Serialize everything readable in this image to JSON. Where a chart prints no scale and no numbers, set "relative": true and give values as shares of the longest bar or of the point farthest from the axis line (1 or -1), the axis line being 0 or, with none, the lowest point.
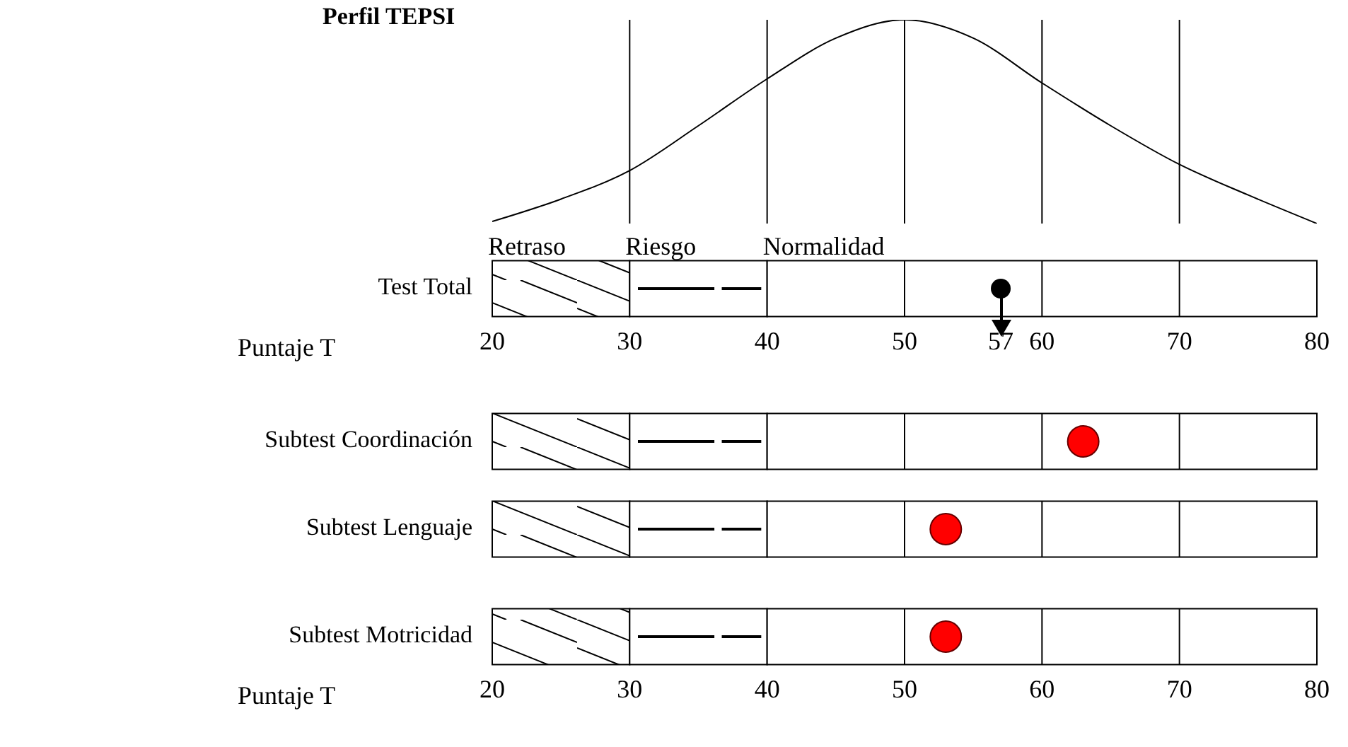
{
  "chart_data": [
    {
      "type": "line",
      "title": "Perfil TEPSI",
      "relative": true,
      "x": [
        20,
        25,
        30,
        35,
        40,
        45,
        50,
        55,
        60,
        65,
        70,
        75,
        80
      ],
      "values": [
        0.01,
        0.12,
        0.26,
        0.48,
        0.71,
        0.91,
        1,
        0.91,
        0.69,
        0.48,
        0.29,
        0.14,
        0
      ],
      "color": "#000000",
      "xlim": [
        20,
        80
      ],
      "tick_labels": false,
      "marker": "none",
      "line_style": "solid",
      "ref_lines": [
        {
          "axis": "x",
          "value": 30
        },
        {
          "axis": "x",
          "value": 40
        },
        {
          "axis": "x",
          "value": 50
        },
        {
          "axis": "x",
          "value": 60
        },
        {
          "axis": "x",
          "value": 70
        }
      ]
    },
    {
      "type": "scatter",
      "orientation": "horizontal",
      "categories": [
        "Test Total"
      ],
      "values": [
        57
      ],
      "colors": [
        "#000000"
      ],
      "xlabel": "Puntaje T",
      "xlim": [
        20,
        80
      ],
      "xticks": [
        20,
        30,
        40,
        50,
        57,
        60,
        70,
        80
      ],
      "bands": [
        {
          "axis": "x",
          "from": 20,
          "to": 30,
          "label": "Retraso"
        },
        {
          "axis": "x",
          "from": 30,
          "to": 40,
          "label": "Riesgo"
        },
        {
          "axis": "x",
          "from": 40,
          "to": 80,
          "label": "Normalidad"
        }
      ],
      "ref_lines": [
        {
          "axis": "x",
          "value": 50
        },
        {
          "axis": "x",
          "value": 60
        },
        {
          "axis": "x",
          "value": 70
        }
      ]
    },
    {
      "type": "scatter",
      "orientation": "horizontal",
      "categories": [
        "Subtest Coordinación"
      ],
      "values": [
        63
      ],
      "colors": [
        "#ff0000"
      ],
      "xlim": [
        20,
        80
      ],
      "tick_labels": "y",
      "bands": [
        {
          "axis": "x",
          "from": 20,
          "to": 30
        },
        {
          "axis": "x",
          "from": 30,
          "to": 40
        },
        {
          "axis": "x",
          "from": 40,
          "to": 80
        }
      ],
      "ref_lines": [
        {
          "axis": "x",
          "value": 50
        },
        {
          "axis": "x",
          "value": 60
        },
        {
          "axis": "x",
          "value": 70
        }
      ]
    },
    {
      "type": "scatter",
      "orientation": "horizontal",
      "categories": [
        "Subtest Lenguaje"
      ],
      "values": [
        53
      ],
      "colors": [
        "#ff0000"
      ],
      "xlim": [
        20,
        80
      ],
      "tick_labels": "y",
      "bands": [
        {
          "axis": "x",
          "from": 20,
          "to": 30
        },
        {
          "axis": "x",
          "from": 30,
          "to": 40
        },
        {
          "axis": "x",
          "from": 40,
          "to": 80
        }
      ],
      "ref_lines": [
        {
          "axis": "x",
          "value": 50
        },
        {
          "axis": "x",
          "value": 60
        },
        {
          "axis": "x",
          "value": 70
        }
      ]
    },
    {
      "type": "scatter",
      "orientation": "horizontal",
      "categories": [
        "Subtest Motricidad"
      ],
      "values": [
        53
      ],
      "colors": [
        "#ff0000"
      ],
      "xlabel": "Puntaje T",
      "xlim": [
        20,
        80
      ],
      "xticks": [
        20,
        30,
        40,
        50,
        60,
        70,
        80
      ],
      "bands": [
        {
          "axis": "x",
          "from": 20,
          "to": 30
        },
        {
          "axis": "x",
          "from": 30,
          "to": 40
        },
        {
          "axis": "x",
          "from": 40,
          "to": 80
        }
      ],
      "ref_lines": [
        {
          "axis": "x",
          "value": 50
        },
        {
          "axis": "x",
          "value": 60
        },
        {
          "axis": "x",
          "value": 70
        }
      ]
    }
  ]
}
